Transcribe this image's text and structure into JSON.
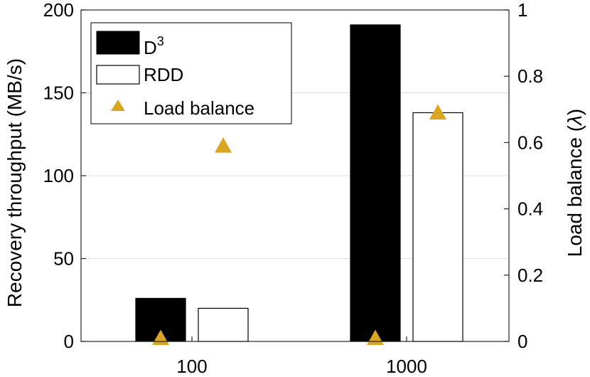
{
  "chart_data": {
    "type": "bar",
    "categories": [
      "100",
      "1000"
    ],
    "series": [
      {
        "name": "D",
        "name_sup": "3",
        "values": [
          26,
          191
        ],
        "color": "#000000"
      },
      {
        "name": "RDD",
        "values": [
          20,
          138
        ],
        "color": "#ffffff"
      }
    ],
    "secondary_series": {
      "name": "Load balance",
      "type": "scatter",
      "marker": "triangle",
      "color": "#DAA520",
      "points": [
        {
          "x_group": 0,
          "x_offset": -1,
          "value": 0.01
        },
        {
          "x_group": 0,
          "x_offset": 1,
          "value": 0.59
        },
        {
          "x_group": 1,
          "x_offset": -1,
          "value": 0.01
        },
        {
          "x_group": 1,
          "x_offset": 1,
          "value": 0.69
        }
      ]
    },
    "ylabel": "Recovery throughput (MB/s)",
    "y2label_prefix": "Load balance (",
    "y2label_symbol": "λ",
    "y2label_suffix": ")",
    "ylim": [
      0,
      200
    ],
    "y2lim": [
      0,
      1
    ],
    "yticks": [
      "0",
      "50",
      "100",
      "150",
      "200"
    ],
    "y2ticks": [
      "0",
      "0.2",
      "0.4",
      "0.6",
      "0.8",
      "1"
    ],
    "grid": true,
    "legend_position": "top-left"
  }
}
